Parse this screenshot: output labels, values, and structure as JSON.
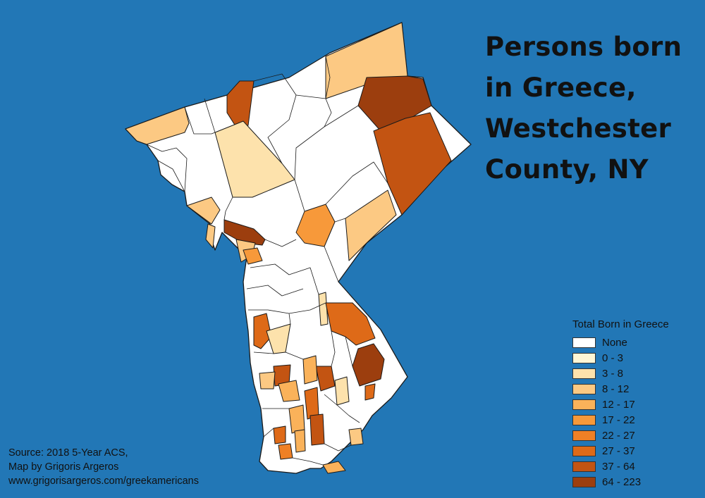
{
  "title_lines": [
    "Persons born",
    "in Greece,",
    "Westchester",
    "County, NY"
  ],
  "legend": {
    "title": "Total Born in Greece",
    "items": [
      {
        "label": "None",
        "color": "#ffffff"
      },
      {
        "label": "0 - 3",
        "color": "#fff6d5"
      },
      {
        "label": "3 - 8",
        "color": "#fde2ac"
      },
      {
        "label": "8 - 12",
        "color": "#fcc983"
      },
      {
        "label": "12 - 17",
        "color": "#fab25a"
      },
      {
        "label": "17 - 22",
        "color": "#f7993a"
      },
      {
        "label": "22 - 27",
        "color": "#ef8025"
      },
      {
        "label": "27 - 37",
        "color": "#de6a18"
      },
      {
        "label": "37 - 64",
        "color": "#c35412"
      },
      {
        "label": "64 - 223",
        "color": "#9c3e0e"
      }
    ]
  },
  "source_lines": [
    "Source: 2018 5-Year ACS,",
    "Map by Grigoris Argeros",
    "www.grigorisargeros.com/greekamericans"
  ],
  "colors": {
    "background": "#2277b6",
    "border": "#1a1a1a"
  }
}
